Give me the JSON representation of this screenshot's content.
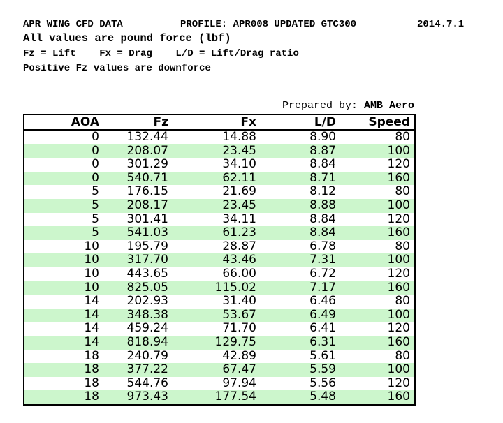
{
  "header": {
    "title": "APR WING CFD DATA",
    "profile": "PROFILE: APR008 UPDATED GTC300",
    "date": "2014.7.1",
    "units_note": "All values are pound force (lbf)",
    "legend": "Fz = Lift    Fx = Drag    L/D = Lift/Drag ratio",
    "downforce_note": "Positive Fz values are downforce"
  },
  "prepared_by": {
    "label": "Prepared by: ",
    "name": "AMB Aero"
  },
  "table": {
    "columns": [
      "AOA",
      "Fz",
      "Fx",
      "L/D",
      "Speed"
    ],
    "rows": [
      [
        "0",
        "132.44",
        "14.88",
        "8.90",
        "80"
      ],
      [
        "0",
        "208.07",
        "23.45",
        "8.87",
        "100"
      ],
      [
        "0",
        "301.29",
        "34.10",
        "8.84",
        "120"
      ],
      [
        "0",
        "540.71",
        "62.11",
        "8.71",
        "160"
      ],
      [
        "5",
        "176.15",
        "21.69",
        "8.12",
        "80"
      ],
      [
        "5",
        "208.17",
        "23.45",
        "8.88",
        "100"
      ],
      [
        "5",
        "301.41",
        "34.11",
        "8.84",
        "120"
      ],
      [
        "5",
        "541.03",
        "61.23",
        "8.84",
        "160"
      ],
      [
        "10",
        "195.79",
        "28.87",
        "6.78",
        "80"
      ],
      [
        "10",
        "317.70",
        "43.46",
        "7.31",
        "100"
      ],
      [
        "10",
        "443.65",
        "66.00",
        "6.72",
        "120"
      ],
      [
        "10",
        "825.05",
        "115.02",
        "7.17",
        "160"
      ],
      [
        "14",
        "202.93",
        "31.40",
        "6.46",
        "80"
      ],
      [
        "14",
        "348.38",
        "53.67",
        "6.49",
        "100"
      ],
      [
        "14",
        "459.24",
        "71.70",
        "6.41",
        "120"
      ],
      [
        "14",
        "818.94",
        "129.75",
        "6.31",
        "160"
      ],
      [
        "18",
        "240.79",
        "42.89",
        "5.61",
        "80"
      ],
      [
        "18",
        "377.22",
        "67.47",
        "5.59",
        "100"
      ],
      [
        "18",
        "544.76",
        "97.94",
        "5.56",
        "120"
      ],
      [
        "18",
        "973.43",
        "177.54",
        "5.48",
        "160"
      ]
    ],
    "stripe_color": "#ccf6cc",
    "border_color": "#000000",
    "text_color": "#000000"
  }
}
